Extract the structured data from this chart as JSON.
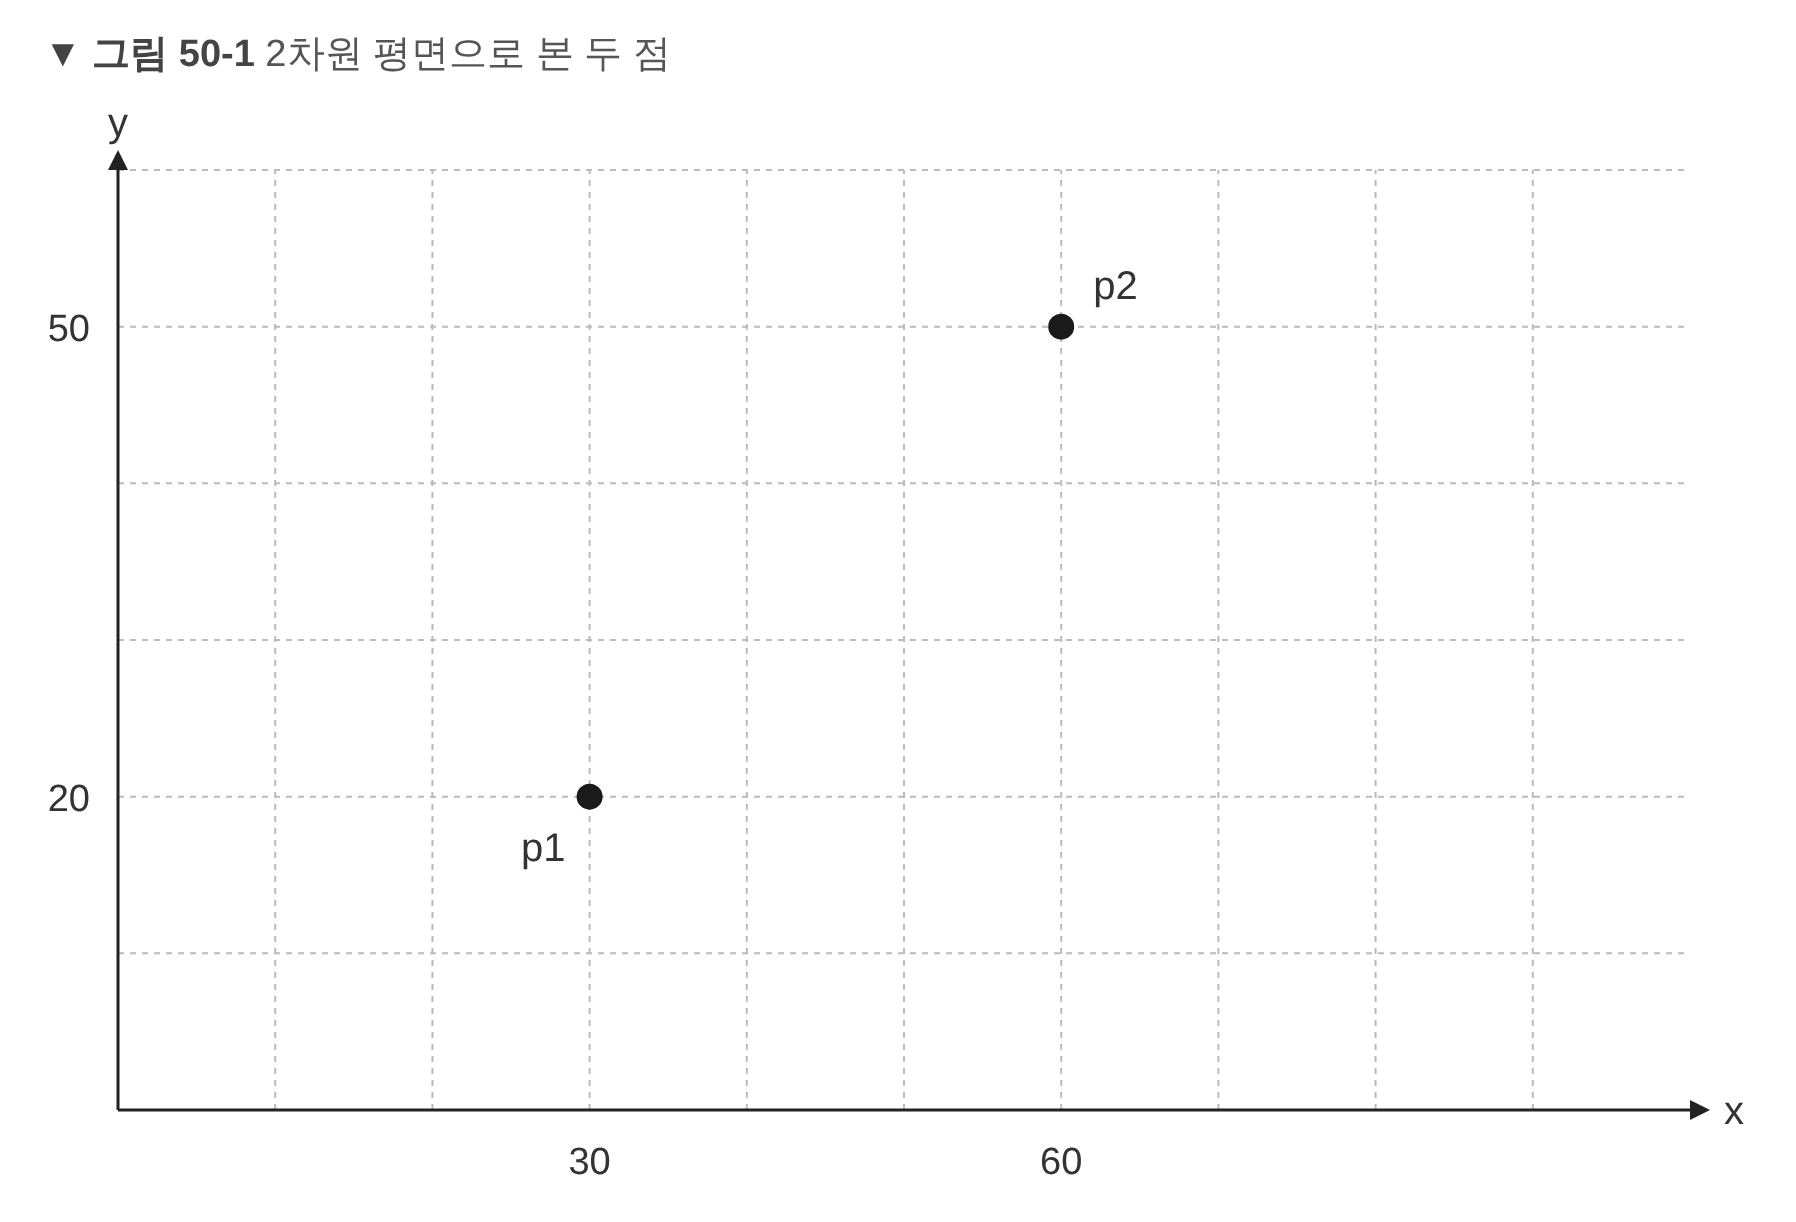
{
  "chart_data": {
    "type": "scatter",
    "title": "▼ 그림 50-1 2차원 평면으로 본 두 점",
    "xlabel": "x",
    "ylabel": "y",
    "x": [
      30,
      60
    ],
    "series": [
      {
        "color": "#1a1a1a",
        "values": [
          20,
          50
        ]
      }
    ],
    "annotations": [
      {
        "text": "p1",
        "x": 30,
        "y": 20
      },
      {
        "text": "p2",
        "x": 60,
        "y": 50
      }
    ],
    "xlim": [
      0,
      100
    ],
    "ylim": [
      0,
      60
    ],
    "xticks": [
      {
        "value": 10,
        "label": null
      },
      {
        "value": 20,
        "label": null
      },
      30,
      {
        "value": 40,
        "label": null
      },
      {
        "value": 50,
        "label": null
      },
      60,
      {
        "value": 70,
        "label": null
      },
      {
        "value": 80,
        "label": null
      },
      {
        "value": 90,
        "label": null
      }
    ],
    "yticks": [
      {
        "value": 10,
        "label": null
      },
      20,
      {
        "value": 30,
        "label": null
      },
      {
        "value": 40,
        "label": null
      },
      50,
      {
        "value": 60,
        "label": null
      }
    ],
    "grid": true,
    "marker": "circle"
  }
}
